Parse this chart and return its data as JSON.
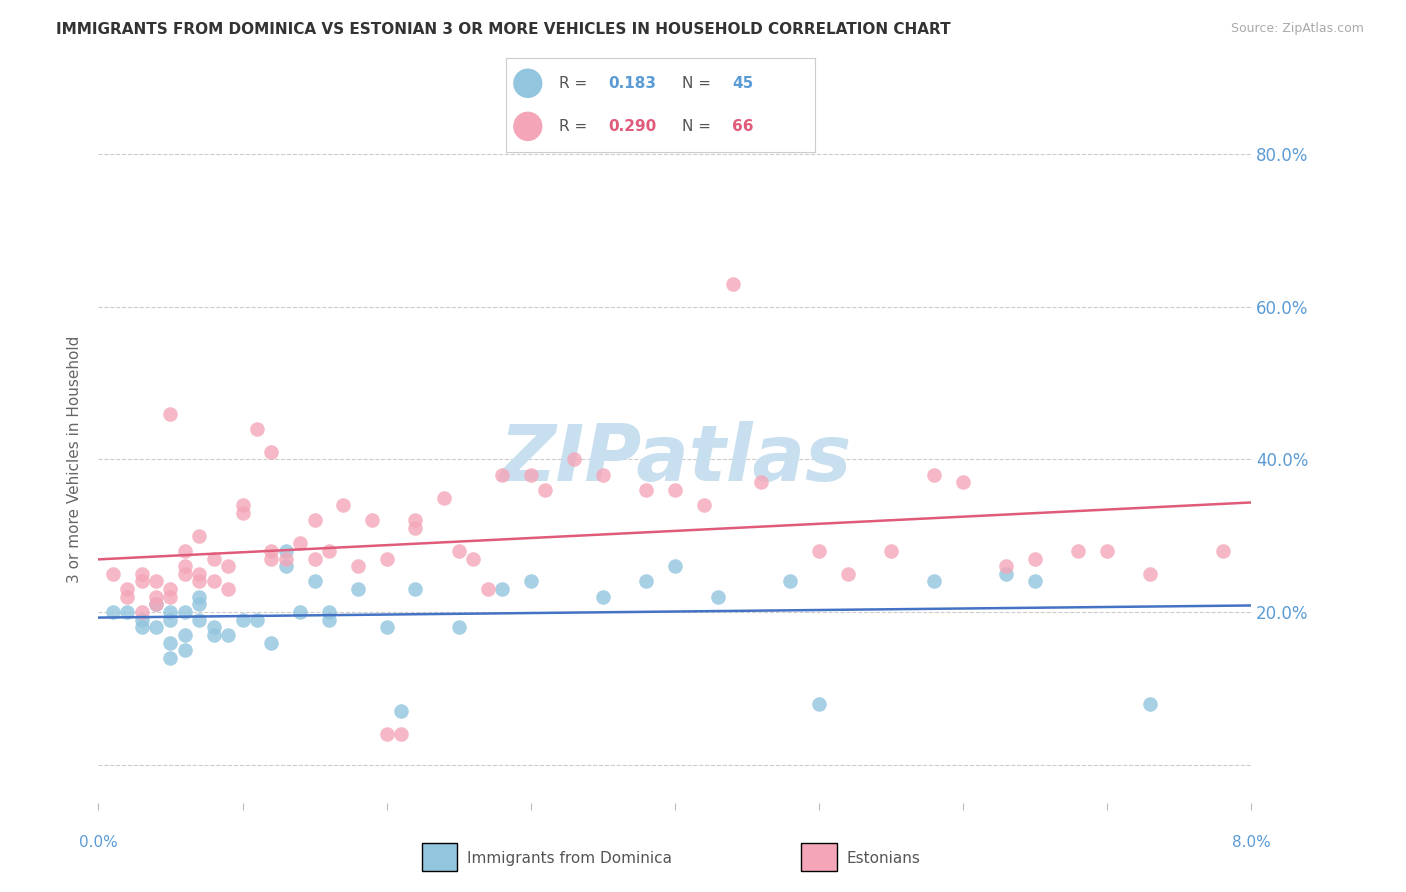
{
  "title": "IMMIGRANTS FROM DOMINICA VS ESTONIAN 3 OR MORE VEHICLES IN HOUSEHOLD CORRELATION CHART",
  "source": "Source: ZipAtlas.com",
  "ylabel": "3 or more Vehicles in Household",
  "x_min": 0.0,
  "x_max": 0.08,
  "y_min": -0.05,
  "y_max": 0.85,
  "y_tick_positions": [
    0.0,
    0.2,
    0.4,
    0.6,
    0.8
  ],
  "y_tick_labels": [
    "",
    "20.0%",
    "40.0%",
    "60.0%",
    "80.0%"
  ],
  "legend_R1": "0.183",
  "legend_N1": "45",
  "legend_R2": "0.290",
  "legend_N2": "66",
  "legend_label1": "Immigrants from Dominica",
  "legend_label2": "Estonians",
  "blue_color": "#92c5de",
  "pink_color": "#f4a6b8",
  "blue_line_color": "#4472c4",
  "pink_line_color": "#e05a7a",
  "title_color": "#333333",
  "source_color": "#aaaaaa",
  "tick_label_color": "#5b9bd5",
  "watermark_color": "#c8dff0",
  "blue_scatter_x": [
    0.001,
    0.002,
    0.003,
    0.003,
    0.004,
    0.004,
    0.005,
    0.005,
    0.005,
    0.005,
    0.006,
    0.006,
    0.006,
    0.007,
    0.007,
    0.007,
    0.008,
    0.008,
    0.009,
    0.01,
    0.011,
    0.012,
    0.013,
    0.013,
    0.014,
    0.015,
    0.016,
    0.016,
    0.018,
    0.02,
    0.021,
    0.022,
    0.025,
    0.028,
    0.03,
    0.035,
    0.038,
    0.04,
    0.043,
    0.048,
    0.05,
    0.058,
    0.063,
    0.065,
    0.073
  ],
  "blue_scatter_y": [
    0.2,
    0.2,
    0.19,
    0.18,
    0.21,
    0.18,
    0.2,
    0.19,
    0.14,
    0.16,
    0.2,
    0.17,
    0.15,
    0.22,
    0.21,
    0.19,
    0.17,
    0.18,
    0.17,
    0.19,
    0.19,
    0.16,
    0.28,
    0.26,
    0.2,
    0.24,
    0.2,
    0.19,
    0.23,
    0.18,
    0.07,
    0.23,
    0.18,
    0.23,
    0.24,
    0.22,
    0.24,
    0.26,
    0.22,
    0.24,
    0.08,
    0.24,
    0.25,
    0.24,
    0.08
  ],
  "pink_scatter_x": [
    0.001,
    0.002,
    0.002,
    0.003,
    0.003,
    0.003,
    0.004,
    0.004,
    0.004,
    0.005,
    0.005,
    0.005,
    0.006,
    0.006,
    0.006,
    0.007,
    0.007,
    0.007,
    0.008,
    0.008,
    0.009,
    0.009,
    0.01,
    0.01,
    0.011,
    0.012,
    0.012,
    0.012,
    0.013,
    0.014,
    0.015,
    0.015,
    0.016,
    0.017,
    0.018,
    0.019,
    0.02,
    0.02,
    0.021,
    0.022,
    0.022,
    0.024,
    0.025,
    0.026,
    0.027,
    0.028,
    0.03,
    0.031,
    0.033,
    0.035,
    0.038,
    0.04,
    0.042,
    0.044,
    0.046,
    0.05,
    0.052,
    0.055,
    0.058,
    0.06,
    0.063,
    0.065,
    0.068,
    0.07,
    0.073,
    0.078
  ],
  "pink_scatter_y": [
    0.25,
    0.22,
    0.23,
    0.24,
    0.2,
    0.25,
    0.24,
    0.22,
    0.21,
    0.46,
    0.23,
    0.22,
    0.26,
    0.25,
    0.28,
    0.3,
    0.25,
    0.24,
    0.24,
    0.27,
    0.23,
    0.26,
    0.34,
    0.33,
    0.44,
    0.28,
    0.27,
    0.41,
    0.27,
    0.29,
    0.27,
    0.32,
    0.28,
    0.34,
    0.26,
    0.32,
    0.27,
    0.04,
    0.04,
    0.31,
    0.32,
    0.35,
    0.28,
    0.27,
    0.23,
    0.38,
    0.38,
    0.36,
    0.4,
    0.38,
    0.36,
    0.36,
    0.34,
    0.63,
    0.37,
    0.28,
    0.25,
    0.28,
    0.38,
    0.37,
    0.26,
    0.27,
    0.28,
    0.28,
    0.25,
    0.28
  ]
}
